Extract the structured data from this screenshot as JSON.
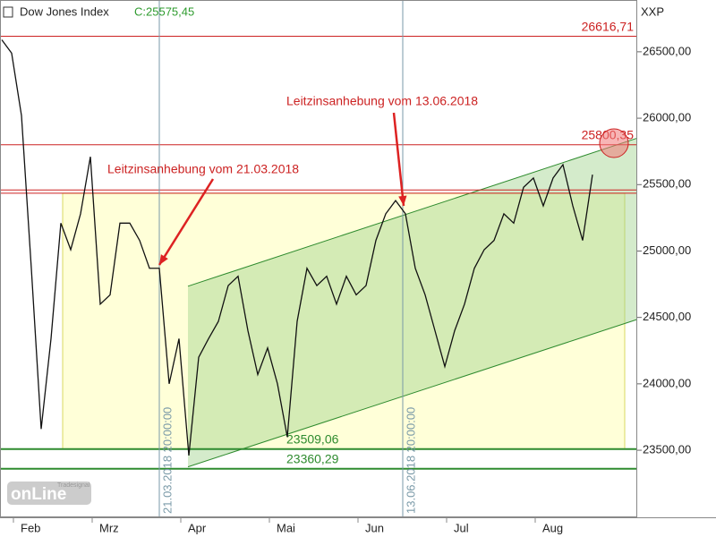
{
  "chart_data": {
    "type": "line",
    "title": "Dow Jones Index",
    "subtitle": "C:25575,45",
    "y_axis_label": "XXP",
    "categories": [
      null,
      null,
      null,
      "Feb",
      null,
      null,
      null,
      null,
      null,
      null,
      null,
      "Mrz",
      null,
      null,
      null,
      null,
      null,
      null,
      null,
      null,
      "Apr",
      null,
      null,
      null,
      null,
      null,
      null,
      null,
      null,
      "Mai",
      null,
      null,
      null,
      null,
      null,
      null,
      null,
      null,
      "Jun",
      null,
      null,
      null,
      null,
      null,
      null,
      null,
      null,
      "Jul",
      null,
      null,
      null,
      null,
      null,
      null,
      null,
      null,
      "Aug",
      null,
      null,
      null,
      null
    ],
    "series": [
      {
        "name": "Dow Jones Index",
        "color": "#111111",
        "values": [
          26590,
          26490,
          26020,
          24870,
          23660,
          24340,
          25210,
          25010,
          25280,
          25710,
          24600,
          24670,
          25210,
          25210,
          25080,
          24870,
          24870,
          24000,
          24340,
          23460,
          24200,
          24340,
          24470,
          24740,
          24810,
          24400,
          24070,
          24270,
          24000,
          23600,
          24470,
          24870,
          24740,
          24810,
          24600,
          24810,
          24670,
          24740,
          25080,
          25280,
          25380,
          25280,
          24870,
          24670,
          24400,
          24130,
          24400,
          24600,
          24870,
          25010,
          25080,
          25280,
          25210,
          25480,
          25550,
          25340,
          25550,
          25650,
          25340,
          25080,
          25575
        ]
      }
    ],
    "ylim": [
      22995,
      26890
    ],
    "yticks": [
      {
        "value": 23500,
        "label": "23500,00"
      },
      {
        "value": 24000,
        "label": "24000,00"
      },
      {
        "value": 24500,
        "label": "24500,00"
      },
      {
        "value": 25000,
        "label": "25000,00"
      },
      {
        "value": 25500,
        "label": "25500,00"
      },
      {
        "value": 26000,
        "label": "26000,00"
      },
      {
        "value": 26500,
        "label": "26500,00"
      }
    ],
    "levels": [
      {
        "value": 26616.71,
        "label": "26616,71",
        "color": "#cc2222"
      },
      {
        "value": 25800.35,
        "label": "25800,35",
        "color": "#cc2222"
      },
      {
        "value": 23509.06,
        "label": "23509,06",
        "color": "#2e8b2e"
      },
      {
        "value": 23360.29,
        "label": "23360,29",
        "color": "#2e8b2e"
      }
    ],
    "resistance_lines": [
      25460,
      25435
    ],
    "range_box": [
      25435,
      23509.06
    ],
    "channel": {
      "lower": [
        23375,
        24485
      ],
      "upper": [
        24735,
        25850
      ]
    },
    "events": [
      "21.03.2018 20:00:00",
      "13.06.2018 20:00:00"
    ],
    "annotations": [
      "Leitzinsanhebung vom 21.03.2018",
      "Leitzinsanhebung vom 13.06.2018"
    ],
    "logo": {
      "brand": "Tradesignal",
      "name": "onLine"
    }
  }
}
